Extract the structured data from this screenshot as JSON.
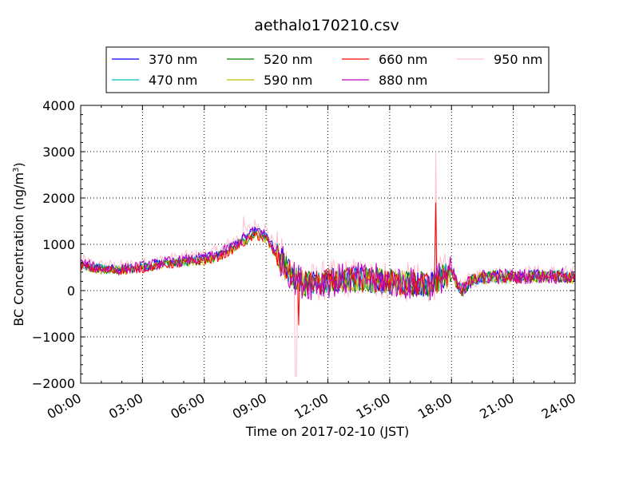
{
  "chart_data": {
    "type": "line",
    "title": "aethalo170210.csv",
    "xlabel": "Time on 2017-02-10 (JST)",
    "ylabel_main": "BC Concentration (ng/m",
    "ylabel_sup": "3",
    "ylabel_end": ")",
    "xlim": [
      "00:00",
      "24:00"
    ],
    "ylim": [
      -2000,
      4000
    ],
    "x_ticks": [
      "00:00",
      "03:00",
      "06:00",
      "09:00",
      "12:00",
      "15:00",
      "18:00",
      "21:00",
      "24:00"
    ],
    "y_ticks": [
      "−2000",
      "−1000",
      "0",
      "1000",
      "2000",
      "3000",
      "4000"
    ],
    "grid": true,
    "legend_position": "top",
    "series": [
      {
        "name": "370 nm",
        "color": "#0000ff"
      },
      {
        "name": "470 nm",
        "color": "#00bfbf"
      },
      {
        "name": "520 nm",
        "color": "#008000"
      },
      {
        "name": "590 nm",
        "color": "#bfbf00"
      },
      {
        "name": "660 nm",
        "color": "#ff0000"
      },
      {
        "name": "880 nm",
        "color": "#bf00bf"
      },
      {
        "name": "950 nm",
        "color": "#ffc0cb"
      }
    ],
    "trend_hours": [
      0,
      0.5,
      1,
      2,
      3,
      4,
      5,
      6,
      6.5,
      7,
      7.5,
      8,
      8.5,
      9,
      9.5,
      10,
      10.3,
      10.7,
      11,
      12,
      13,
      14,
      15,
      16,
      17,
      17.3,
      18,
      18.5,
      19,
      20,
      21,
      22,
      23,
      24
    ],
    "trend_values": [
      600,
      520,
      480,
      470,
      520,
      600,
      650,
      700,
      750,
      850,
      1000,
      1150,
      1300,
      1200,
      800,
      500,
      300,
      200,
      150,
      200,
      250,
      250,
      200,
      150,
      150,
      250,
      400,
      0,
      250,
      320,
      300,
      320,
      320,
      300
    ],
    "spikes": [
      {
        "hour": 17.25,
        "series": "950 nm",
        "value": 3000
      },
      {
        "hour": 17.25,
        "series": "660 nm",
        "value": 1900
      },
      {
        "hour": 10.45,
        "series": "950 nm",
        "value": -1850
      },
      {
        "hour": 10.6,
        "series": "660 nm",
        "value": -750
      },
      {
        "hour": 7.9,
        "series": "950 nm",
        "value": 1600
      }
    ]
  }
}
